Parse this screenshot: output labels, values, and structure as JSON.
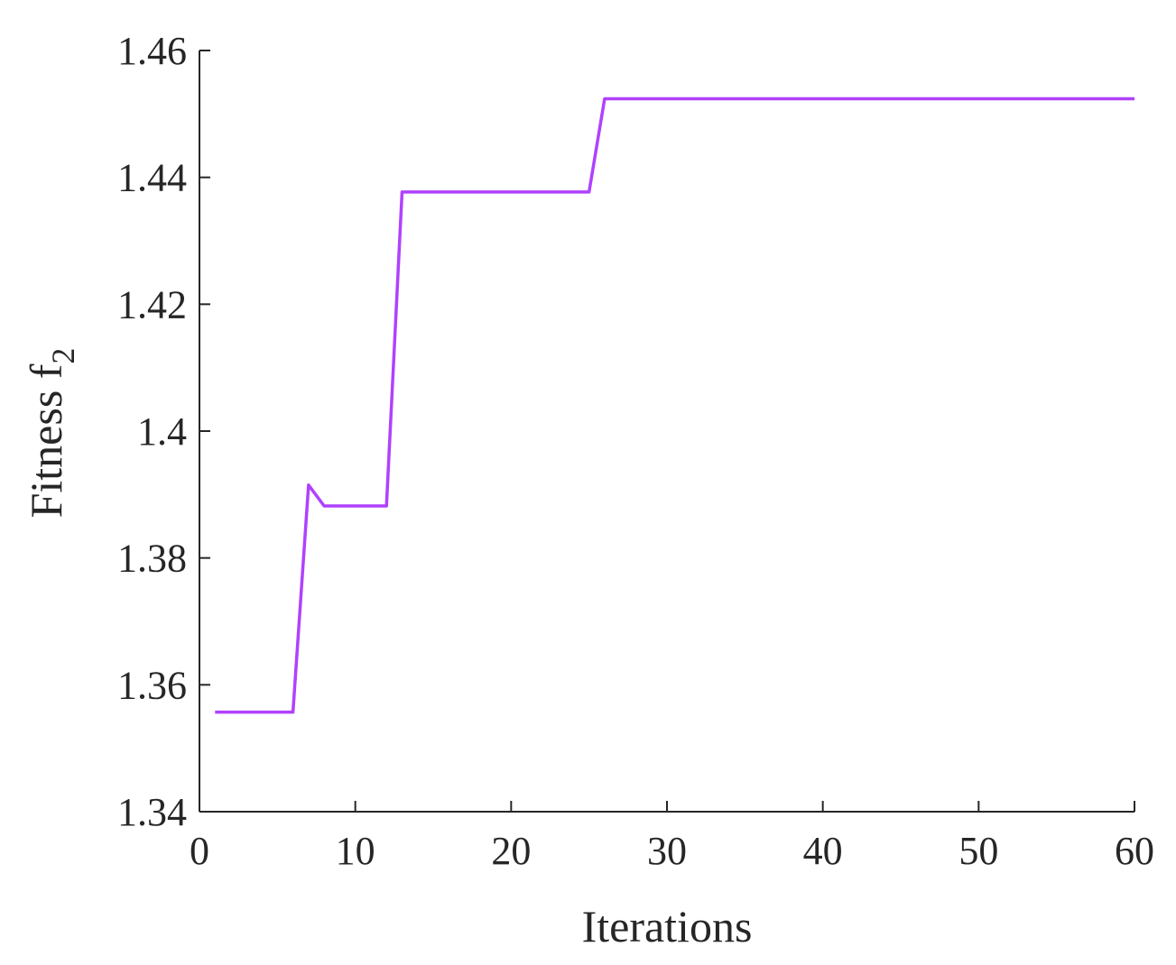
{
  "chart_data": {
    "type": "line",
    "title": "",
    "xlabel": "Iterations",
    "ylabel_main": "Fitness f",
    "ylabel_sub": "2",
    "xlim": [
      0,
      60
    ],
    "ylim": [
      1.34,
      1.46
    ],
    "xticks": [
      0,
      10,
      20,
      30,
      40,
      50,
      60
    ],
    "xtick_labels": [
      "0",
      "10",
      "20",
      "30",
      "40",
      "50",
      "60"
    ],
    "yticks": [
      1.34,
      1.36,
      1.38,
      1.4,
      1.42,
      1.44,
      1.46
    ],
    "ytick_labels": [
      "1.34",
      "1.36",
      "1.38",
      "1.4",
      "1.42",
      "1.44",
      "1.46"
    ],
    "grid": false,
    "series": [
      {
        "color": "#b041ff",
        "x": [
          1,
          6,
          7,
          8,
          12,
          13,
          25,
          26,
          60
        ],
        "y": [
          1.3557,
          1.3557,
          1.3915,
          1.3882,
          1.3882,
          1.4377,
          1.4377,
          1.4524,
          1.4524
        ]
      }
    ]
  }
}
